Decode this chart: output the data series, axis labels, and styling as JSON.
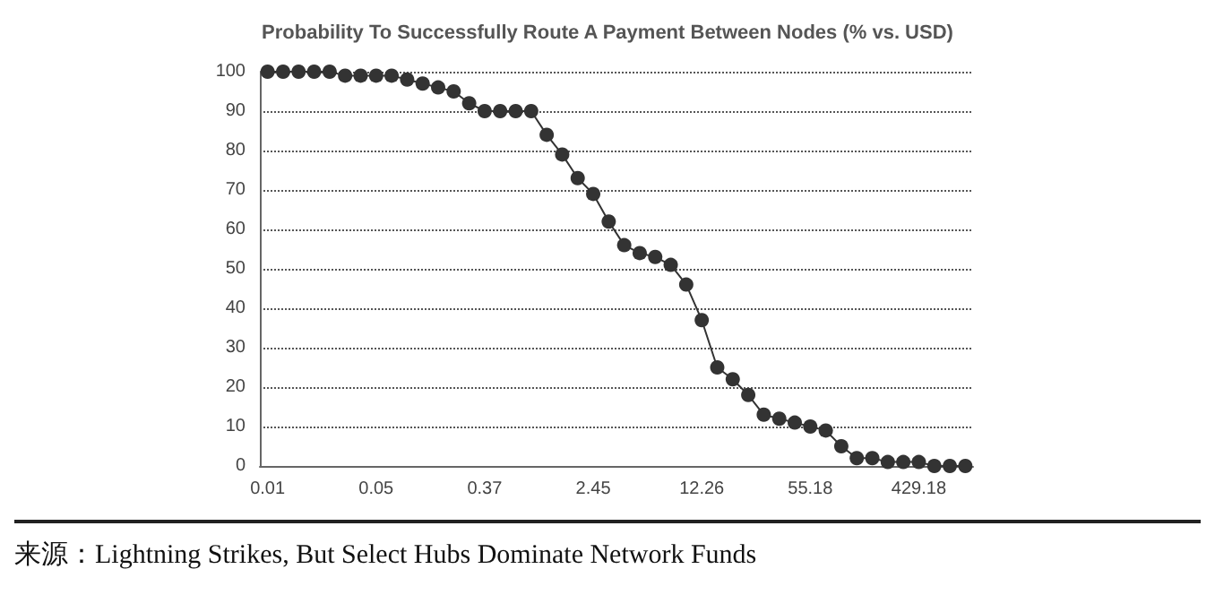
{
  "chart_data": {
    "type": "line",
    "title": "Probability To Successfully Route A Payment Between Nodes (% vs. USD)",
    "categories": [
      "0.01",
      null,
      null,
      null,
      null,
      null,
      null,
      "0.05",
      null,
      null,
      null,
      null,
      null,
      null,
      "0.37",
      null,
      null,
      null,
      null,
      null,
      null,
      "2.45",
      null,
      null,
      null,
      null,
      null,
      null,
      "12.26",
      null,
      null,
      null,
      null,
      null,
      null,
      "55.18",
      null,
      null,
      null,
      null,
      null,
      null,
      "429.18",
      null,
      null,
      null
    ],
    "series": [
      {
        "color": "#333333",
        "values": [
          100,
          100,
          100,
          100,
          100,
          99,
          99,
          99,
          99,
          98,
          97,
          96,
          95,
          92,
          90,
          90,
          90,
          90,
          84,
          79,
          73,
          69,
          62,
          56,
          54,
          53,
          51,
          46,
          37,
          25,
          22,
          18,
          13,
          12,
          11,
          10,
          9,
          5,
          2,
          2,
          1,
          1,
          1,
          0,
          0,
          0
        ]
      }
    ],
    "ylim": [
      0,
      100
    ],
    "yticks": [
      0,
      10,
      20,
      30,
      40,
      50,
      60,
      70,
      80,
      90,
      100
    ],
    "grid": "y",
    "marker": "circle",
    "line_style": "solid",
    "annotations": [
      "来源：Lightning Strikes, But Select Hubs Dominate Network Funds"
    ]
  }
}
